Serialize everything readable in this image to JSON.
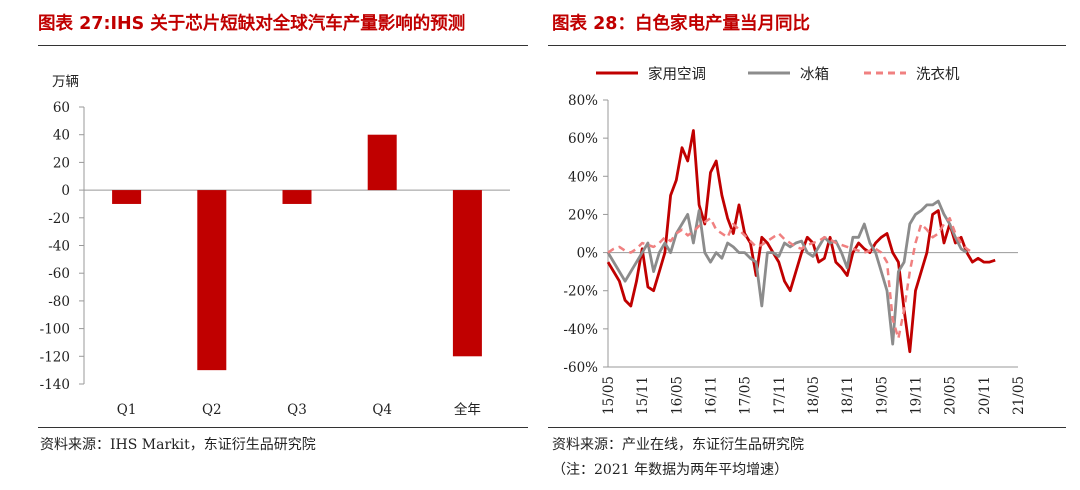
{
  "left_panel": {
    "title": "图表 27:IHS 关于芯片短缺对全球汽车产量影响的预测",
    "source": "资料来源：IHS Markit，东证衍生品研究院"
  },
  "right_panel": {
    "title": "图表 28：白色家电产量当月同比",
    "source": "资料来源：产业在线，东证衍生品研究院",
    "note": "（注：2021 年数据为两年平均增速）"
  },
  "chart_data": [
    {
      "type": "bar",
      "categories": [
        "Q1",
        "Q2",
        "Q3",
        "Q4",
        "全年"
      ],
      "values": [
        -10,
        -130,
        -10,
        40,
        -120
      ],
      "unit_label": "万辆",
      "ylim": [
        -140,
        60
      ],
      "yticks": [
        60,
        40,
        20,
        0,
        -20,
        -40,
        -60,
        -80,
        -100,
        -120,
        -140
      ],
      "color": "#C00000",
      "grid": false
    },
    {
      "type": "line",
      "ylim": [
        -60,
        80
      ],
      "yticks": [
        "80%",
        "60%",
        "40%",
        "20%",
        "0%",
        "-20%",
        "-40%",
        "-60%"
      ],
      "xticks": [
        "15/05",
        "15/11",
        "16/05",
        "16/11",
        "17/05",
        "17/11",
        "18/05",
        "18/11",
        "19/05",
        "19/11",
        "20/05",
        "20/11",
        "21/05"
      ],
      "legend_position": "top",
      "grid": false,
      "series": [
        {
          "name": "家用空调",
          "color": "#C00000",
          "style": "solid",
          "values": [
            -5,
            -10,
            -15,
            -25,
            -28,
            -15,
            2,
            -18,
            -20,
            -10,
            0,
            30,
            38,
            55,
            48,
            64,
            25,
            15,
            42,
            48,
            30,
            18,
            10,
            25,
            10,
            5,
            -12,
            8,
            5,
            0,
            -5,
            -15,
            -20,
            -10,
            0,
            8,
            5,
            -5,
            -3,
            8,
            -5,
            -8,
            -12,
            0,
            5,
            2,
            0,
            5,
            8,
            10,
            0,
            -5,
            -30,
            -52,
            -20,
            -10,
            0,
            20,
            22,
            5,
            15,
            5,
            8,
            0,
            -5,
            -3,
            -5,
            -5,
            -4
          ]
        },
        {
          "name": "冰箱",
          "color": "#8C8C8C",
          "style": "solid",
          "values": [
            0,
            -5,
            -10,
            -15,
            -10,
            -5,
            0,
            5,
            -10,
            0,
            5,
            0,
            10,
            15,
            20,
            5,
            22,
            0,
            -5,
            0,
            -3,
            5,
            3,
            0,
            0,
            -3,
            -5,
            -28,
            0,
            0,
            -2,
            5,
            3,
            5,
            6,
            0,
            -2,
            3,
            8,
            5,
            6,
            0,
            -8,
            8,
            8,
            15,
            5,
            0,
            -10,
            -20,
            -48,
            -10,
            -5,
            15,
            20,
            22,
            25,
            25,
            27,
            20,
            15,
            8,
            2,
            0
          ]
        },
        {
          "name": "洗衣机",
          "color": "#F08080",
          "style": "dashed",
          "values": [
            0,
            2,
            3,
            1,
            0,
            2,
            5,
            4,
            3,
            5,
            8,
            6,
            10,
            12,
            9,
            11,
            14,
            16,
            18,
            12,
            10,
            8,
            15,
            12,
            9,
            6,
            3,
            4,
            6,
            8,
            10,
            7,
            5,
            3,
            2,
            4,
            5,
            6,
            8,
            7,
            5,
            4,
            3,
            2,
            1,
            0,
            1,
            2,
            0,
            -5,
            -35,
            -45,
            -30,
            -10,
            5,
            15,
            12,
            8,
            10,
            15,
            18,
            10,
            5,
            2,
            0
          ]
        }
      ]
    }
  ]
}
